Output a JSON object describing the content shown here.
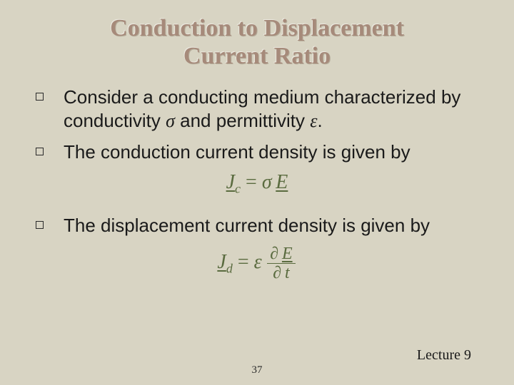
{
  "slide": {
    "title_line1": "Conduction to Displacement",
    "title_line2": "Current Ratio",
    "bullets": [
      {
        "pre": "Consider a conducting medium characterized by conductivity ",
        "sym1": "σ",
        "mid": " and permittivity ",
        "sym2": "ε",
        "post": "."
      },
      {
        "text": "The conduction current density is given by"
      },
      {
        "text": "The displacement current density is given by"
      }
    ],
    "equations": {
      "eq1": {
        "J": "J",
        "sub": "c",
        "eq": " = ",
        "sigma": "σ",
        "E": "E"
      },
      "eq2": {
        "J": "J",
        "sub": "d",
        "eq": " = ",
        "eps": "ε",
        "partial": "∂",
        "E": "E",
        "t": "t"
      }
    },
    "page_number": "37",
    "lecture_label": "Lecture 9"
  },
  "style": {
    "background_color": "#d8d4c3",
    "title_color": "#a68a7a",
    "title_fontsize": 34,
    "body_fontsize": 26,
    "body_color": "#1a1a1a",
    "equation_color": "#5a6b3f",
    "equation_fontsize": 28,
    "bullet_border_color": "#2a2a2a",
    "footer_fontsize": 15,
    "lecture_fontsize": 20
  }
}
